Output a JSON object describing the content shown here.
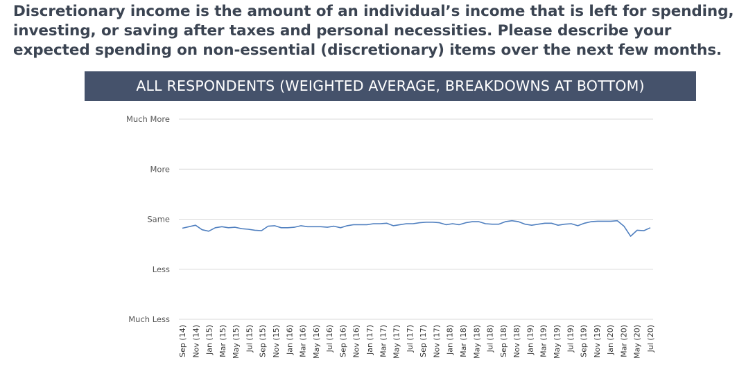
{
  "question": "Discretionary income is the amount of an individual’s income that is left for spending, investing, or saving after taxes and personal necessities. Please describe your expected spending on non-essential (discretionary) items over the next few months.",
  "colors": {
    "banner_bg": "#45526b",
    "line": "#4f7fbf",
    "grid": "#d9d9d9"
  },
  "chart_data": {
    "type": "line",
    "title": "ALL RESPONDENTS (WEIGHTED AVERAGE, BREAKDOWNS AT BOTTOM)",
    "xlabel": "",
    "ylabel": "",
    "grid": true,
    "legend": "none",
    "y_tick_labels": [
      "Much More",
      "More",
      "Same",
      "Less",
      "Much Less"
    ],
    "y_tick_values": [
      5,
      4,
      3,
      2,
      1
    ],
    "ylim": [
      1,
      5
    ],
    "x_tick_labels": [
      "Sep (14)",
      "Nov (14)",
      "Jan (15)",
      "Mar (15)",
      "May (15)",
      "Jul (15)",
      "Sep (15)",
      "Nov (15)",
      "Jan (16)",
      "Mar (16)",
      "May (16)",
      "Jul (16)",
      "Sep (16)",
      "Nov (16)",
      "Jan (17)",
      "Mar (17)",
      "May (17)",
      "Jul (17)",
      "Sep (17)",
      "Nov (17)",
      "Jan (18)",
      "Mar (18)",
      "May (18)",
      "Jul (18)",
      "Sep (18)",
      "Nov (18)",
      "Jan (19)",
      "Mar (19)",
      "May (19)",
      "Jul (19)",
      "Sep (19)",
      "Nov (19)",
      "Jan (20)",
      "Mar (20)",
      "May (20)",
      "Jul (20)"
    ],
    "series": [
      {
        "values": [
          2.82,
          2.85,
          2.88,
          2.79,
          2.76,
          2.83,
          2.85,
          2.83,
          2.84,
          2.81,
          2.8,
          2.78,
          2.77,
          2.86,
          2.87,
          2.83,
          2.83,
          2.84,
          2.87,
          2.85,
          2.85,
          2.85,
          2.84,
          2.86,
          2.83,
          2.87,
          2.89,
          2.89,
          2.89,
          2.91,
          2.91,
          2.92,
          2.87,
          2.89,
          2.91,
          2.91,
          2.93,
          2.94,
          2.94,
          2.93,
          2.89,
          2.91,
          2.89,
          2.93,
          2.95,
          2.95,
          2.91,
          2.9,
          2.9,
          2.95,
          2.97,
          2.95,
          2.9,
          2.88,
          2.9,
          2.92,
          2.92,
          2.88,
          2.9,
          2.91,
          2.87,
          2.92,
          2.95,
          2.96,
          2.96,
          2.96,
          2.97,
          2.86,
          2.66,
          2.78,
          2.77,
          2.83
        ]
      }
    ]
  }
}
